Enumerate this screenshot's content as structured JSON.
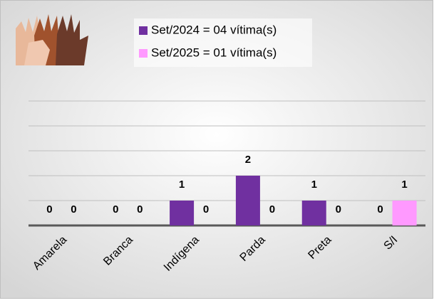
{
  "chart_data": {
    "type": "bar",
    "categories": [
      "Amarela",
      "Branca",
      "Indígena",
      "Parda",
      "Preta",
      "S/I"
    ],
    "series": [
      {
        "name": "Set/2024 = 04 vítima(s)",
        "color": "#7030a0",
        "values": [
          0,
          0,
          1,
          2,
          1,
          0
        ]
      },
      {
        "name": "Set/2025 = 01 vítima(s)",
        "color": "#ff99ff",
        "values": [
          0,
          0,
          0,
          0,
          0,
          1
        ]
      }
    ],
    "ylim": [
      0,
      5
    ],
    "yticks": [
      0,
      1,
      2,
      3,
      4,
      5
    ],
    "grid": true
  }
}
